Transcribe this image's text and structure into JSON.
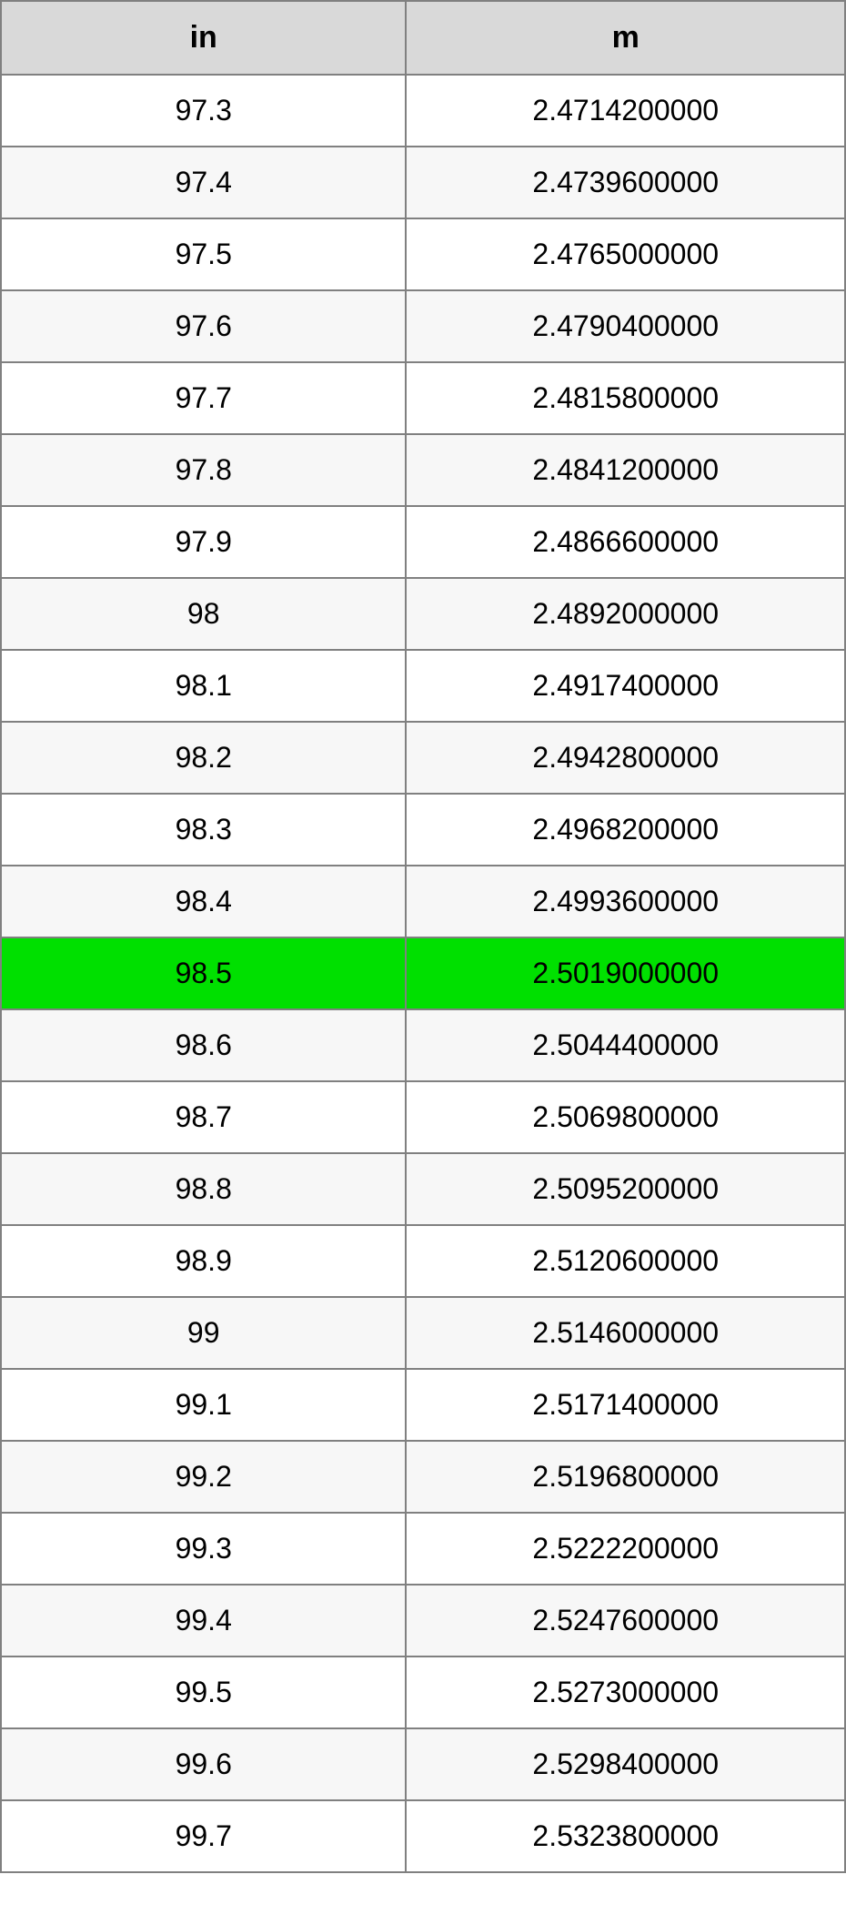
{
  "table": {
    "type": "table",
    "columns": [
      {
        "key": "in",
        "label": "in",
        "width_pct": 48,
        "align": "center"
      },
      {
        "key": "m",
        "label": "m",
        "width_pct": 52,
        "align": "center"
      }
    ],
    "header_background": "#d9d9d9",
    "header_font_weight": "bold",
    "header_fontsize_pt": 26,
    "cell_fontsize_pt": 24,
    "border_color": "#808080",
    "row_alt_background": "#f7f7f7",
    "row_background": "#ffffff",
    "highlight_background": "#00e000",
    "highlight_row_index": 12,
    "rows": [
      {
        "in": "97.3",
        "m": "2.4714200000"
      },
      {
        "in": "97.4",
        "m": "2.4739600000"
      },
      {
        "in": "97.5",
        "m": "2.4765000000"
      },
      {
        "in": "97.6",
        "m": "2.4790400000"
      },
      {
        "in": "97.7",
        "m": "2.4815800000"
      },
      {
        "in": "97.8",
        "m": "2.4841200000"
      },
      {
        "in": "97.9",
        "m": "2.4866600000"
      },
      {
        "in": "98",
        "m": "2.4892000000"
      },
      {
        "in": "98.1",
        "m": "2.4917400000"
      },
      {
        "in": "98.2",
        "m": "2.4942800000"
      },
      {
        "in": "98.3",
        "m": "2.4968200000"
      },
      {
        "in": "98.4",
        "m": "2.4993600000"
      },
      {
        "in": "98.5",
        "m": "2.5019000000"
      },
      {
        "in": "98.6",
        "m": "2.5044400000"
      },
      {
        "in": "98.7",
        "m": "2.5069800000"
      },
      {
        "in": "98.8",
        "m": "2.5095200000"
      },
      {
        "in": "98.9",
        "m": "2.5120600000"
      },
      {
        "in": "99",
        "m": "2.5146000000"
      },
      {
        "in": "99.1",
        "m": "2.5171400000"
      },
      {
        "in": "99.2",
        "m": "2.5196800000"
      },
      {
        "in": "99.3",
        "m": "2.5222200000"
      },
      {
        "in": "99.4",
        "m": "2.5247600000"
      },
      {
        "in": "99.5",
        "m": "2.5273000000"
      },
      {
        "in": "99.6",
        "m": "2.5298400000"
      },
      {
        "in": "99.7",
        "m": "2.5323800000"
      }
    ]
  }
}
